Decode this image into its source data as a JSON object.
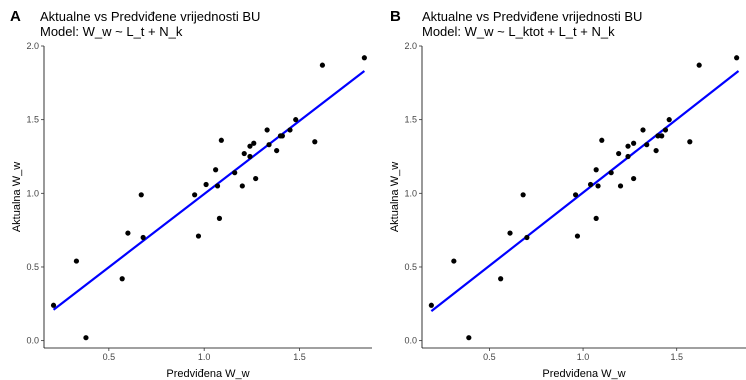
{
  "chart_data": [
    {
      "type": "scatter",
      "panel_tag": "A",
      "title": "Aktualne vs Predviđene vrijednosti BU",
      "subtitle": "Model: W_w ~ L_t + N_k",
      "xlabel": "Predviđena W_w",
      "ylabel": "Aktualna W_w",
      "xlim": [
        0.16,
        1.88
      ],
      "ylim": [
        -0.05,
        2.0
      ],
      "xticks": [
        0.5,
        1.0,
        1.5
      ],
      "xtick_labels": [
        "0.5",
        "1.0",
        "1.5"
      ],
      "yticks": [
        0.0,
        0.5,
        1.0,
        1.5,
        2.0
      ],
      "ytick_labels": [
        "0.0",
        "0.5",
        "1.0",
        "1.5",
        "2.0"
      ],
      "grid": false,
      "point_color": "#000000",
      "line_color": "#0000ff",
      "fit_line": {
        "x": [
          0.21,
          1.84
        ],
        "y": [
          0.21,
          1.83
        ]
      },
      "points": [
        {
          "x": 0.21,
          "y": 0.24
        },
        {
          "x": 0.33,
          "y": 0.54
        },
        {
          "x": 0.38,
          "y": 0.02
        },
        {
          "x": 0.57,
          "y": 0.42
        },
        {
          "x": 0.6,
          "y": 0.73
        },
        {
          "x": 0.67,
          "y": 0.99
        },
        {
          "x": 0.68,
          "y": 0.7
        },
        {
          "x": 0.95,
          "y": 0.99
        },
        {
          "x": 0.97,
          "y": 0.71
        },
        {
          "x": 1.01,
          "y": 1.06
        },
        {
          "x": 1.06,
          "y": 1.16
        },
        {
          "x": 1.07,
          "y": 1.05
        },
        {
          "x": 1.08,
          "y": 0.83
        },
        {
          "x": 1.09,
          "y": 1.36
        },
        {
          "x": 1.16,
          "y": 1.14
        },
        {
          "x": 1.2,
          "y": 1.05
        },
        {
          "x": 1.21,
          "y": 1.27
        },
        {
          "x": 1.24,
          "y": 1.25
        },
        {
          "x": 1.24,
          "y": 1.32
        },
        {
          "x": 1.26,
          "y": 1.34
        },
        {
          "x": 1.27,
          "y": 1.1
        },
        {
          "x": 1.33,
          "y": 1.43
        },
        {
          "x": 1.34,
          "y": 1.33
        },
        {
          "x": 1.38,
          "y": 1.29
        },
        {
          "x": 1.4,
          "y": 1.39
        },
        {
          "x": 1.41,
          "y": 1.39
        },
        {
          "x": 1.45,
          "y": 1.43
        },
        {
          "x": 1.48,
          "y": 1.5
        },
        {
          "x": 1.58,
          "y": 1.35
        },
        {
          "x": 1.62,
          "y": 1.87
        },
        {
          "x": 1.84,
          "y": 1.92
        }
      ]
    },
    {
      "type": "scatter",
      "panel_tag": "B",
      "title": "Aktualne vs Predviđene vrijednosti BU",
      "subtitle": "Model: W_w ~ L_ktot + L_t + N_k",
      "xlabel": "Predviđena W_w",
      "ylabel": "Aktualna W_w",
      "xlim": [
        0.14,
        1.87
      ],
      "ylim": [
        -0.05,
        2.0
      ],
      "xticks": [
        0.5,
        1.0,
        1.5
      ],
      "xtick_labels": [
        "0.5",
        "1.0",
        "1.5"
      ],
      "yticks": [
        0.0,
        0.5,
        1.0,
        1.5,
        2.0
      ],
      "ytick_labels": [
        "0.0",
        "0.5",
        "1.0",
        "1.5",
        "2.0"
      ],
      "grid": false,
      "point_color": "#000000",
      "line_color": "#0000ff",
      "fit_line": {
        "x": [
          0.19,
          1.83
        ],
        "y": [
          0.2,
          1.83
        ]
      },
      "points": [
        {
          "x": 0.19,
          "y": 0.24
        },
        {
          "x": 0.31,
          "y": 0.54
        },
        {
          "x": 0.39,
          "y": 0.02
        },
        {
          "x": 0.56,
          "y": 0.42
        },
        {
          "x": 0.61,
          "y": 0.73
        },
        {
          "x": 0.68,
          "y": 0.99
        },
        {
          "x": 0.7,
          "y": 0.7
        },
        {
          "x": 0.96,
          "y": 0.99
        },
        {
          "x": 0.97,
          "y": 0.71
        },
        {
          "x": 1.04,
          "y": 1.06
        },
        {
          "x": 1.07,
          "y": 1.16
        },
        {
          "x": 1.08,
          "y": 1.05
        },
        {
          "x": 1.07,
          "y": 0.83
        },
        {
          "x": 1.1,
          "y": 1.36
        },
        {
          "x": 1.15,
          "y": 1.14
        },
        {
          "x": 1.2,
          "y": 1.05
        },
        {
          "x": 1.19,
          "y": 1.27
        },
        {
          "x": 1.24,
          "y": 1.25
        },
        {
          "x": 1.24,
          "y": 1.32
        },
        {
          "x": 1.27,
          "y": 1.34
        },
        {
          "x": 1.27,
          "y": 1.1
        },
        {
          "x": 1.32,
          "y": 1.43
        },
        {
          "x": 1.34,
          "y": 1.33
        },
        {
          "x": 1.39,
          "y": 1.29
        },
        {
          "x": 1.4,
          "y": 1.39
        },
        {
          "x": 1.42,
          "y": 1.39
        },
        {
          "x": 1.44,
          "y": 1.43
        },
        {
          "x": 1.46,
          "y": 1.5
        },
        {
          "x": 1.57,
          "y": 1.35
        },
        {
          "x": 1.62,
          "y": 1.87
        },
        {
          "x": 1.82,
          "y": 1.92
        }
      ]
    }
  ]
}
